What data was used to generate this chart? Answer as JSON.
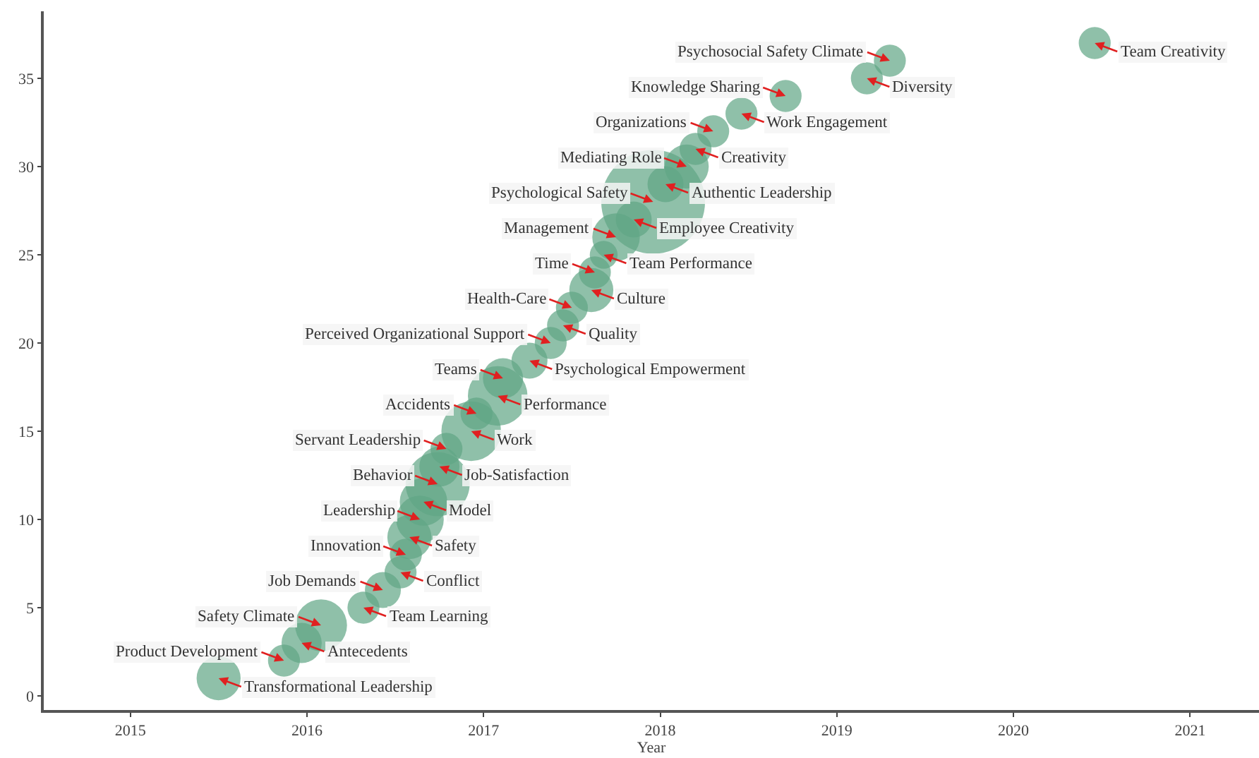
{
  "chart_data": {
    "type": "bubble",
    "xlabel": "Year",
    "color": "#5fa585",
    "x": [
      2015.5,
      2015.87,
      2015.97,
      2016.08,
      2016.32,
      2016.43,
      2016.53,
      2016.56,
      2016.58,
      2016.64,
      2016.66,
      2016.74,
      2016.75,
      2016.79,
      2016.93,
      2016.96,
      2017.08,
      2017.11,
      2017.26,
      2017.38,
      2017.45,
      2017.5,
      2017.61,
      2017.63,
      2017.68,
      2017.75,
      2017.85,
      2017.96,
      2018.03,
      2018.15,
      2018.2,
      2018.3,
      2018.46,
      2018.71,
      2019.17,
      2019.3,
      2020.46
    ],
    "values": [
      1,
      2,
      3,
      4,
      5,
      6,
      7,
      8,
      9,
      10,
      11,
      12,
      13,
      14,
      15,
      16,
      17,
      18,
      19,
      20,
      21,
      22,
      23,
      24,
      25,
      26,
      27,
      28,
      29,
      30,
      31,
      32,
      33,
      34,
      35,
      36,
      37
    ],
    "sizes": [
      0.18,
      0.095,
      0.15,
      0.25,
      0.095,
      0.12,
      0.095,
      0.095,
      0.18,
      0.21,
      0.21,
      0.38,
      0.15,
      0.095,
      0.33,
      0.095,
      0.33,
      0.15,
      0.12,
      0.095,
      0.095,
      0.095,
      0.18,
      0.095,
      0.072,
      0.21,
      0.12,
      1,
      0.12,
      0.18,
      0.095,
      0.095,
      0.095,
      0.095,
      0.095,
      0.095,
      0.095
    ],
    "annotations": [
      {
        "text": "Transformational Leadership",
        "x": 2015.5,
        "y": 1
      },
      {
        "text": "Product Development",
        "x": 2015.87,
        "y": 2
      },
      {
        "text": "Antecedents",
        "x": 2015.97,
        "y": 3
      },
      {
        "text": "Safety Climate",
        "x": 2016.08,
        "y": 4
      },
      {
        "text": "Team Learning",
        "x": 2016.32,
        "y": 5
      },
      {
        "text": "Job Demands",
        "x": 2016.43,
        "y": 6
      },
      {
        "text": "Conflict",
        "x": 2016.53,
        "y": 7
      },
      {
        "text": "Innovation",
        "x": 2016.56,
        "y": 8
      },
      {
        "text": "Safety",
        "x": 2016.58,
        "y": 9
      },
      {
        "text": "Leadership",
        "x": 2016.64,
        "y": 10
      },
      {
        "text": "Model",
        "x": 2016.66,
        "y": 11
      },
      {
        "text": "Behavior",
        "x": 2016.74,
        "y": 12
      },
      {
        "text": "Job-Satisfaction",
        "x": 2016.75,
        "y": 13
      },
      {
        "text": "Servant Leadership",
        "x": 2016.79,
        "y": 14
      },
      {
        "text": "Work",
        "x": 2016.93,
        "y": 15
      },
      {
        "text": "Accidents",
        "x": 2016.96,
        "y": 16
      },
      {
        "text": "Performance",
        "x": 2017.08,
        "y": 17
      },
      {
        "text": "Teams",
        "x": 2017.11,
        "y": 18
      },
      {
        "text": "Psychological Empowerment",
        "x": 2017.26,
        "y": 19
      },
      {
        "text": "Perceived Organizational Support",
        "x": 2017.38,
        "y": 20
      },
      {
        "text": "Quality",
        "x": 2017.45,
        "y": 21
      },
      {
        "text": "Health-Care",
        "x": 2017.5,
        "y": 22
      },
      {
        "text": "Culture",
        "x": 2017.61,
        "y": 23
      },
      {
        "text": "Time",
        "x": 2017.63,
        "y": 24
      },
      {
        "text": "Team Performance",
        "x": 2017.68,
        "y": 25
      },
      {
        "text": "Management",
        "x": 2017.75,
        "y": 26
      },
      {
        "text": "Employee Creativity",
        "x": 2017.85,
        "y": 27
      },
      {
        "text": "Psychological Safety",
        "x": 2017.96,
        "y": 28
      },
      {
        "text": "Authentic Leadership",
        "x": 2018.03,
        "y": 29
      },
      {
        "text": "Mediating Role",
        "x": 2018.15,
        "y": 30
      },
      {
        "text": "Creativity",
        "x": 2018.2,
        "y": 31
      },
      {
        "text": "Organizations",
        "x": 2018.3,
        "y": 32
      },
      {
        "text": "Work Engagement",
        "x": 2018.46,
        "y": 33
      },
      {
        "text": "Knowledge Sharing",
        "x": 2018.71,
        "y": 34
      },
      {
        "text": "Diversity",
        "x": 2019.17,
        "y": 35
      },
      {
        "text": "Psychosocial Safety Climate",
        "x": 2019.3,
        "y": 36
      },
      {
        "text": "Team Creativity",
        "x": 2020.46,
        "y": 37
      }
    ],
    "xlim": [
      2014.51,
      2021.39
    ],
    "xticks": [
      2015,
      2016,
      2017,
      2018,
      2019,
      2020,
      2021
    ],
    "ylim": [
      -0.8,
      38.8
    ],
    "yticks": [
      0,
      5,
      10,
      15,
      20,
      25,
      30,
      35
    ],
    "grid": false,
    "legend": false
  }
}
